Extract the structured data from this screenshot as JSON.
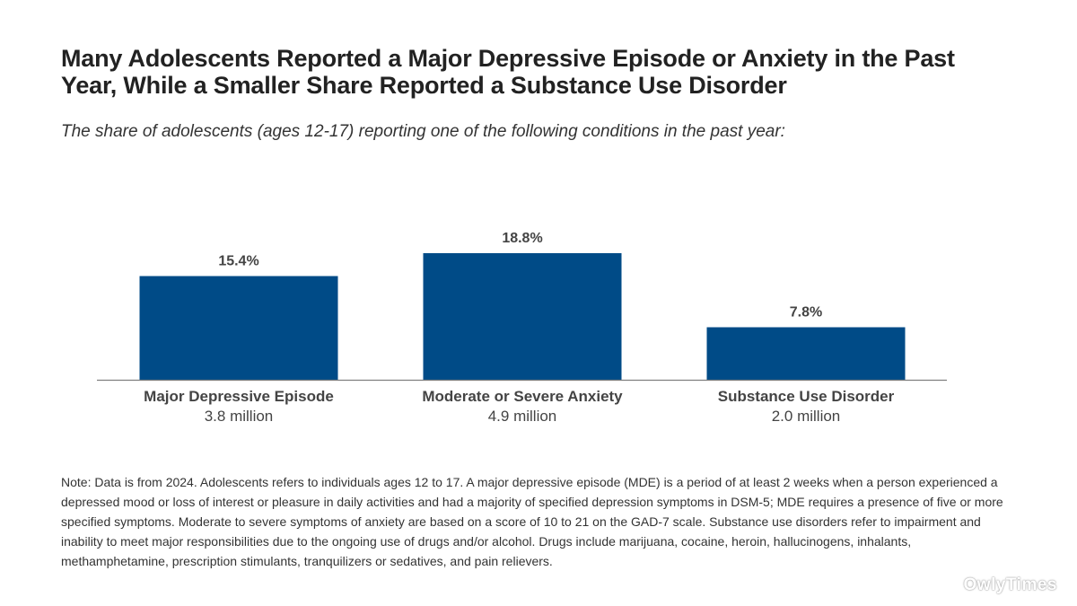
{
  "title": "Many Adolescents Reported a Major Depressive Episode or Anxiety in the Past Year, While a Smaller Share Reported a Substance Use Disorder",
  "subtitle": "The share of adolescents (ages 12-17) reporting one of the following conditions in the past year:",
  "chart_data": {
    "type": "bar",
    "categories": [
      "Major Depressive Episode",
      "Moderate or Severe Anxiety",
      "Substance Use Disorder"
    ],
    "category_sublabels": [
      "3.8 million",
      "4.9 million",
      "2.0 million"
    ],
    "values": [
      15.4,
      18.8,
      7.8
    ],
    "value_labels": [
      "15.4%",
      "18.8%",
      "7.8%"
    ],
    "bar_color": "#004b87",
    "axis_color": "#7f7f7f",
    "ylim": [
      0,
      40
    ],
    "grid": false,
    "legend": "none"
  },
  "note": "Note: Data is from 2024. Adolescents refers to individuals ages 12 to 17. A major depressive episode (MDE) is a period of at least 2 weeks when a person experienced a depressed mood or loss of interest or pleasure in daily activities and had a majority of specified depression symptoms in DSM-5; MDE requires a presence of five or more specified symptoms. Moderate to severe symptoms of anxiety are based on a score of 10 to 21 on the GAD-7 scale. Substance use disorders refer to impairment and inability to meet major responsibilities due to the ongoing use of drugs and/or alcohol. Drugs include marijuana, cocaine, heroin, hallucinogens, inhalants, methamphetamine, prescription stimulants, tranquilizers or sedatives, and pain relievers.",
  "watermark": "OwlyTimes"
}
